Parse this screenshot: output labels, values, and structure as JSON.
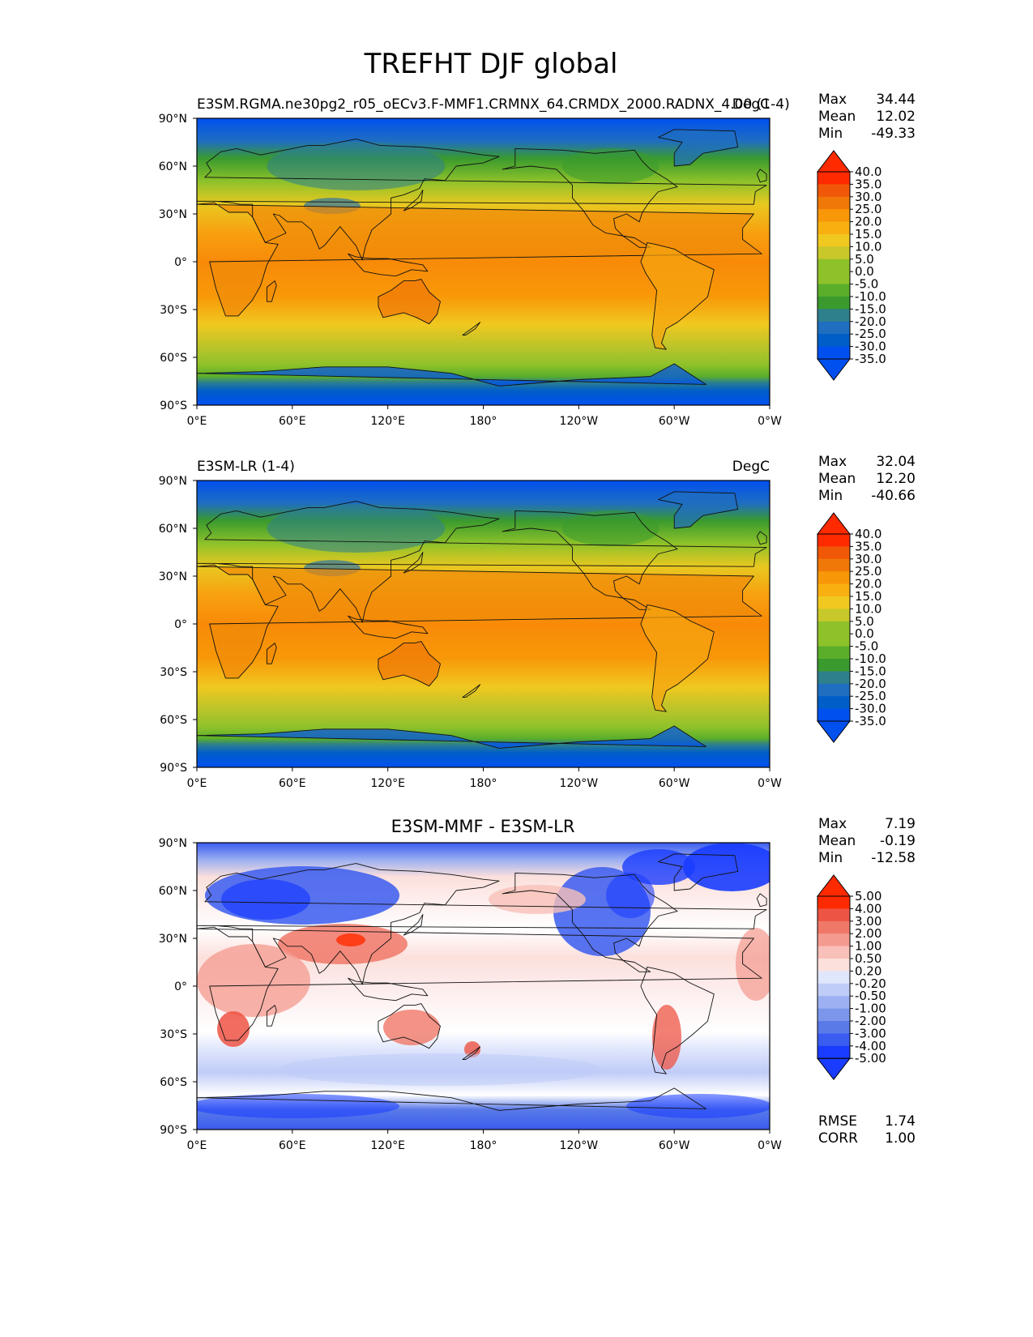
{
  "figure": {
    "title": "TREFHT DJF global"
  },
  "axes": {
    "x_ticks": [
      "0°E",
      "60°E",
      "120°E",
      "180°",
      "120°W",
      "60°W",
      "0°W"
    ],
    "y_ticks": [
      "90°N",
      "60°N",
      "30°N",
      "0°",
      "30°S",
      "60°S",
      "90°S"
    ]
  },
  "colors": {
    "abs_scale": [
      "#0050f0",
      "#005ec8",
      "#1f6ec0",
      "#2e808c",
      "#3a9a2e",
      "#5aae2a",
      "#8ec22a",
      "#c8c82a",
      "#f0c820",
      "#f8b010",
      "#f89808",
      "#f07808",
      "#f05808",
      "#ff2a00"
    ],
    "diff_scale": [
      "#1a3cff",
      "#3a5cf0",
      "#5a7ae8",
      "#7c96ec",
      "#9cb0f2",
      "#c0ccf8",
      "#e0e6fc",
      "#ffffff",
      "#fce0dc",
      "#f8c0b8",
      "#f49a8e",
      "#f07868",
      "#ee5444",
      "#ff2a00"
    ]
  },
  "chart_data": [
    {
      "type": "heatmap",
      "id": "test",
      "title_left": "E3SM.RGMA.ne30pg2_r05_oECv3.F-MMF1.CRMNX_64.CRMDX_2000.RADNX_4.00 (1-4)",
      "title_right": "DegC",
      "stats": {
        "max": "34.44",
        "mean": "12.02",
        "min": "-49.33"
      },
      "colorbar_levels": [
        "40.0",
        "35.0",
        "30.0",
        "25.0",
        "20.0",
        "15.0",
        "10.0",
        "5.0",
        "0.0",
        "-5.0",
        "-10.0",
        "-15.0",
        "-20.0",
        "-25.0",
        "-30.0",
        "-35.0"
      ],
      "xlim": [
        0,
        360
      ],
      "ylim": [
        -90,
        90
      ]
    },
    {
      "type": "heatmap",
      "id": "reference",
      "title_left": "E3SM-LR (1-4)",
      "title_right": "DegC",
      "stats": {
        "max": "32.04",
        "mean": "12.20",
        "min": "-40.66"
      },
      "colorbar_levels": [
        "40.0",
        "35.0",
        "30.0",
        "25.0",
        "20.0",
        "15.0",
        "10.0",
        "5.0",
        "0.0",
        "-5.0",
        "-10.0",
        "-15.0",
        "-20.0",
        "-25.0",
        "-30.0",
        "-35.0"
      ],
      "xlim": [
        0,
        360
      ],
      "ylim": [
        -90,
        90
      ]
    },
    {
      "type": "heatmap",
      "id": "difference",
      "title_center": "E3SM-MMF - E3SM-LR",
      "stats": {
        "max": "7.19",
        "mean": "-0.19",
        "min": "-12.58"
      },
      "extra_stats": {
        "rmse": "1.74",
        "corr": "1.00"
      },
      "colorbar_levels": [
        "5.00",
        "4.00",
        "3.00",
        "2.00",
        "1.00",
        "0.50",
        "0.20",
        "-0.20",
        "-0.50",
        "-1.00",
        "-2.00",
        "-3.00",
        "-4.00",
        "-5.00"
      ],
      "xlim": [
        0,
        360
      ],
      "ylim": [
        -90,
        90
      ]
    }
  ],
  "stat_labels": {
    "max": "Max",
    "mean": "Mean",
    "min": "Min",
    "rmse": "RMSE",
    "corr": "CORR"
  }
}
